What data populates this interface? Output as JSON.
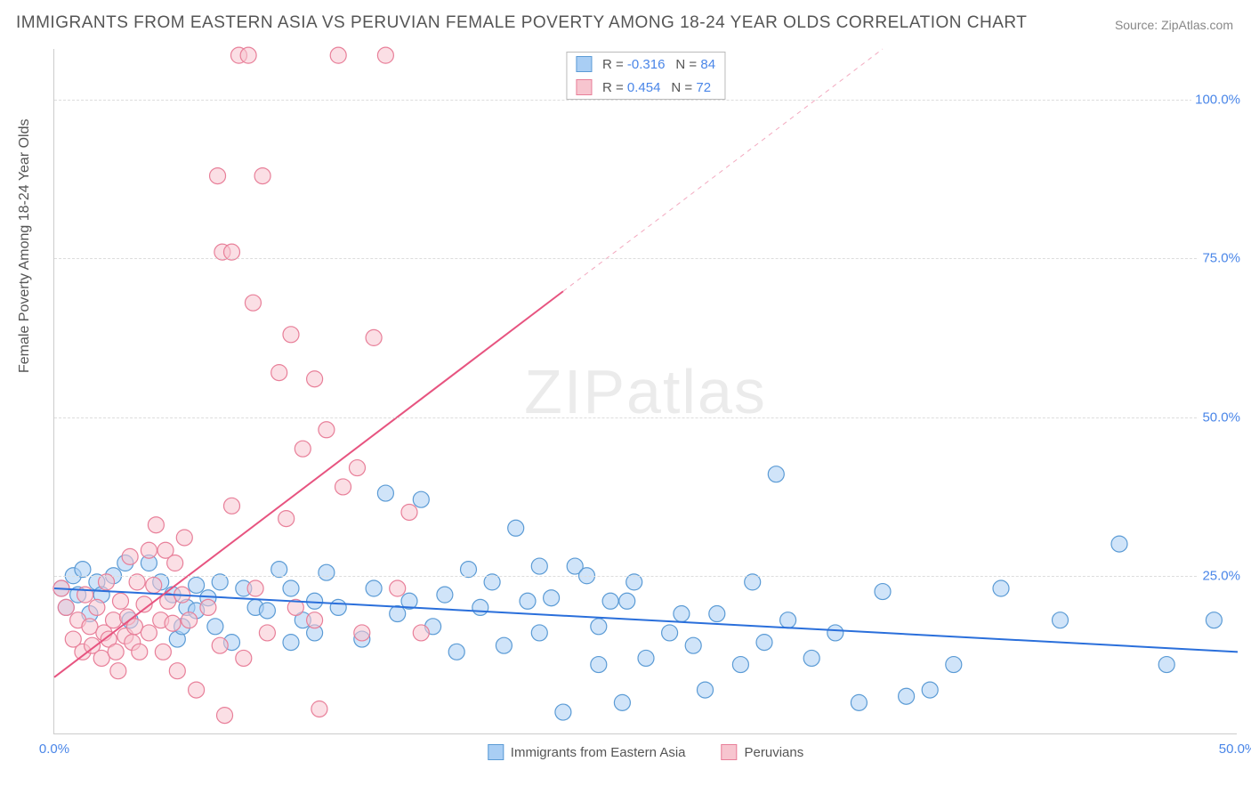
{
  "title": "IMMIGRANTS FROM EASTERN ASIA VS PERUVIAN FEMALE POVERTY AMONG 18-24 YEAR OLDS CORRELATION CHART",
  "source": "Source: ZipAtlas.com",
  "y_axis_title": "Female Poverty Among 18-24 Year Olds",
  "watermark_a": "ZIP",
  "watermark_b": "atlas",
  "chart": {
    "type": "scatter",
    "xlim": [
      0,
      50
    ],
    "ylim": [
      0,
      108
    ],
    "x_ticks": [
      {
        "v": 0,
        "label": "0.0%"
      },
      {
        "v": 50,
        "label": "50.0%"
      }
    ],
    "y_ticks": [
      {
        "v": 25,
        "label": "25.0%"
      },
      {
        "v": 50,
        "label": "50.0%"
      },
      {
        "v": 75,
        "label": "75.0%"
      },
      {
        "v": 100,
        "label": "100.0%"
      }
    ],
    "background_color": "#ffffff",
    "grid_color": "#dddddd",
    "marker_radius": 9,
    "series": [
      {
        "name": "Immigrants from Eastern Asia",
        "fill": "#a9cef4",
        "stroke": "#5b9bd5",
        "trend": {
          "x1": 0,
          "y1": 23,
          "x2": 50,
          "y2": 13,
          "color": "#2a6fdb",
          "width": 2,
          "dash": "none"
        },
        "R": "-0.316",
        "N": "84",
        "points": [
          [
            0.3,
            23
          ],
          [
            0.5,
            20
          ],
          [
            0.8,
            25
          ],
          [
            1.0,
            22
          ],
          [
            1.2,
            26
          ],
          [
            1.5,
            19
          ],
          [
            1.8,
            24
          ],
          [
            2.0,
            22
          ],
          [
            2.5,
            25
          ],
          [
            3.0,
            27
          ],
          [
            3.2,
            18
          ],
          [
            4.0,
            27
          ],
          [
            4.5,
            24
          ],
          [
            5.0,
            22
          ],
          [
            5.2,
            15
          ],
          [
            5.4,
            17
          ],
          [
            5.6,
            20
          ],
          [
            6.0,
            23.5
          ],
          [
            6.0,
            19.5
          ],
          [
            6.5,
            21.5
          ],
          [
            6.8,
            17
          ],
          [
            7.0,
            24
          ],
          [
            7.5,
            14.5
          ],
          [
            8.0,
            23
          ],
          [
            8.5,
            20
          ],
          [
            9.0,
            19.5
          ],
          [
            9.5,
            26
          ],
          [
            10.0,
            14.5
          ],
          [
            10.0,
            23
          ],
          [
            10.5,
            18
          ],
          [
            11.0,
            21
          ],
          [
            11.0,
            16
          ],
          [
            11.5,
            25.5
          ],
          [
            12.0,
            20
          ],
          [
            13.0,
            15
          ],
          [
            13.5,
            23
          ],
          [
            14.0,
            38
          ],
          [
            14.5,
            19
          ],
          [
            15.0,
            21
          ],
          [
            15.5,
            37
          ],
          [
            16.0,
            17
          ],
          [
            16.5,
            22
          ],
          [
            17.0,
            13
          ],
          [
            17.5,
            26
          ],
          [
            18.0,
            20
          ],
          [
            18.5,
            24
          ],
          [
            19.0,
            14
          ],
          [
            19.5,
            32.5
          ],
          [
            20.0,
            21
          ],
          [
            20.5,
            16
          ],
          [
            20.5,
            26.5
          ],
          [
            21.0,
            21.5
          ],
          [
            21.5,
            3.5
          ],
          [
            22.0,
            26.5
          ],
          [
            22.5,
            25
          ],
          [
            23.0,
            17
          ],
          [
            23.0,
            11
          ],
          [
            23.5,
            21
          ],
          [
            24.0,
            5
          ],
          [
            24.2,
            21
          ],
          [
            24.5,
            24
          ],
          [
            25.0,
            12
          ],
          [
            26.0,
            16
          ],
          [
            26.5,
            19
          ],
          [
            27.0,
            14
          ],
          [
            27.5,
            7
          ],
          [
            28.0,
            19
          ],
          [
            29.0,
            11
          ],
          [
            29.5,
            24
          ],
          [
            30.0,
            14.5
          ],
          [
            30.5,
            41
          ],
          [
            31.0,
            18
          ],
          [
            32.0,
            12
          ],
          [
            33.0,
            16
          ],
          [
            34.0,
            5
          ],
          [
            35.0,
            22.5
          ],
          [
            36.0,
            6
          ],
          [
            37.0,
            7
          ],
          [
            38.0,
            11
          ],
          [
            40.0,
            23
          ],
          [
            42.5,
            18
          ],
          [
            45.0,
            30
          ],
          [
            47.0,
            11
          ],
          [
            49.0,
            18
          ]
        ]
      },
      {
        "name": "Peruvians",
        "fill": "#f7c5cf",
        "stroke": "#e87f99",
        "trend": {
          "x1": 0,
          "y1": 9,
          "x2": 35,
          "y2": 108,
          "color": "#e75480",
          "width": 2,
          "dash_until": 21.5
        },
        "R": "0.454",
        "N": "72",
        "points": [
          [
            0.3,
            23
          ],
          [
            0.5,
            20
          ],
          [
            0.8,
            15
          ],
          [
            1.0,
            18
          ],
          [
            1.2,
            13
          ],
          [
            1.3,
            22
          ],
          [
            1.5,
            17
          ],
          [
            1.6,
            14
          ],
          [
            1.8,
            20
          ],
          [
            2.0,
            12
          ],
          [
            2.1,
            16
          ],
          [
            2.2,
            24
          ],
          [
            2.3,
            15
          ],
          [
            2.5,
            18
          ],
          [
            2.6,
            13
          ],
          [
            2.7,
            10
          ],
          [
            2.8,
            21
          ],
          [
            3.0,
            15.5
          ],
          [
            3.1,
            18.5
          ],
          [
            3.2,
            28
          ],
          [
            3.3,
            14.5
          ],
          [
            3.4,
            17
          ],
          [
            3.5,
            24
          ],
          [
            3.6,
            13
          ],
          [
            3.8,
            20.5
          ],
          [
            4.0,
            16
          ],
          [
            4.0,
            29
          ],
          [
            4.2,
            23.5
          ],
          [
            4.3,
            33
          ],
          [
            4.5,
            18
          ],
          [
            4.6,
            13
          ],
          [
            4.7,
            29
          ],
          [
            4.8,
            21
          ],
          [
            5.0,
            17.5
          ],
          [
            5.1,
            27
          ],
          [
            5.2,
            10
          ],
          [
            5.4,
            22
          ],
          [
            5.5,
            31
          ],
          [
            5.7,
            18
          ],
          [
            6.0,
            7
          ],
          [
            6.5,
            20
          ],
          [
            6.9,
            88
          ],
          [
            7.0,
            14
          ],
          [
            7.1,
            76
          ],
          [
            7.2,
            3
          ],
          [
            7.5,
            36
          ],
          [
            7.5,
            76
          ],
          [
            7.8,
            107
          ],
          [
            8.0,
            12
          ],
          [
            8.2,
            107
          ],
          [
            8.4,
            68
          ],
          [
            8.5,
            23
          ],
          [
            8.8,
            88
          ],
          [
            9.0,
            16
          ],
          [
            9.5,
            57
          ],
          [
            9.8,
            34
          ],
          [
            10.0,
            63
          ],
          [
            10.2,
            20
          ],
          [
            10.5,
            45
          ],
          [
            11.0,
            56
          ],
          [
            11.0,
            18
          ],
          [
            11.2,
            4
          ],
          [
            11.5,
            48
          ],
          [
            12.0,
            107
          ],
          [
            12.2,
            39
          ],
          [
            12.8,
            42
          ],
          [
            13.0,
            16
          ],
          [
            13.5,
            62.5
          ],
          [
            14.0,
            107
          ],
          [
            14.5,
            23
          ],
          [
            15.0,
            35
          ],
          [
            15.5,
            16
          ]
        ]
      }
    ]
  },
  "legend_bottom": [
    {
      "swatch_fill": "#a9cef4",
      "swatch_stroke": "#5b9bd5",
      "label": "Immigrants from Eastern Asia"
    },
    {
      "swatch_fill": "#f7c5cf",
      "swatch_stroke": "#e87f99",
      "label": "Peruvians"
    }
  ]
}
